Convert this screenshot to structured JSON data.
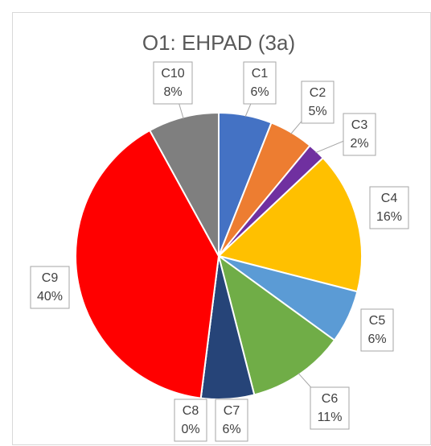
{
  "chart_data": {
    "type": "pie",
    "title": "O1: EHPAD (3a)",
    "categories": [
      "C1",
      "C2",
      "C3",
      "C4",
      "C5",
      "C6",
      "C7",
      "C8",
      "C9",
      "C10"
    ],
    "values": [
      6,
      5,
      2,
      16,
      6,
      11,
      6,
      0,
      40,
      8
    ],
    "value_labels": [
      "6%",
      "5%",
      "2%",
      "16%",
      "6%",
      "11%",
      "6%",
      "0%",
      "40%",
      "8%"
    ],
    "colors": [
      "#4472c4",
      "#ed7d31",
      "#7030a0",
      "#ffc000",
      "#5b9bd5",
      "#70ad47",
      "#264478",
      "#9e480e",
      "#ff0000",
      "#7f7f7f"
    ]
  }
}
